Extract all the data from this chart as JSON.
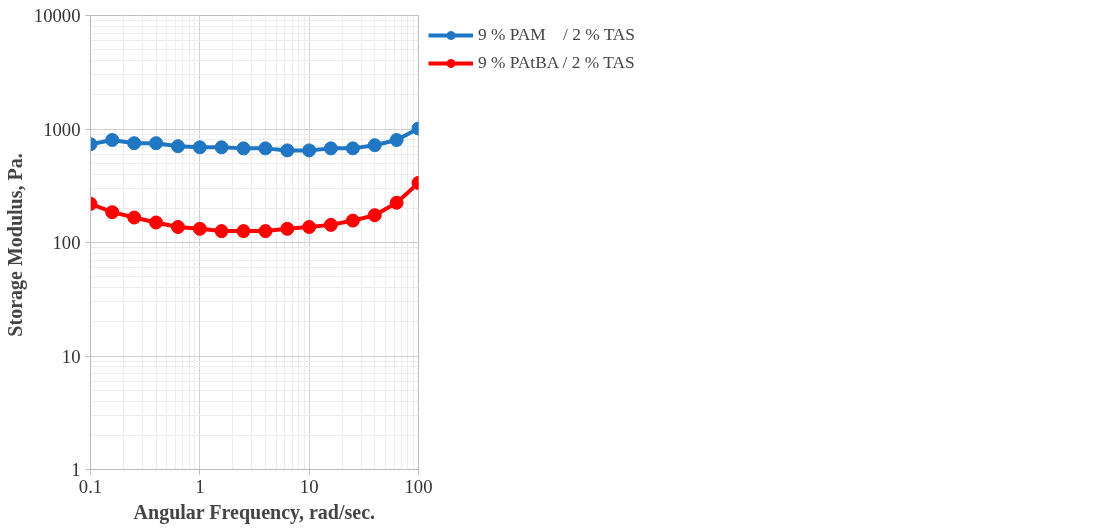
{
  "chart_data": {
    "type": "line",
    "xlabel": "Angular Frequency, rad/sec.",
    "ylabel": "Storage Modulus,  Pa.",
    "x": [
      0.1,
      0.158,
      0.251,
      0.398,
      0.631,
      1,
      1.58,
      2.51,
      3.98,
      6.31,
      10,
      15.8,
      25.1,
      39.8,
      63.1,
      100
    ],
    "series": [
      {
        "name": "9 % PAM    / 2 % TAS",
        "color": "#1f77c4",
        "values": [
          735,
          800,
          750,
          750,
          705,
          690,
          690,
          675,
          675,
          648,
          648,
          675,
          675,
          720,
          800,
          1010
        ]
      },
      {
        "name": "9 % PAtBA / 2 % TAS",
        "color": "#ff0000",
        "values": [
          219,
          185,
          166,
          150,
          137,
          132,
          126,
          126,
          126,
          132,
          137,
          143,
          156,
          174,
          224,
          335
        ]
      }
    ],
    "log": "xy",
    "xlim": [
      0.1,
      100
    ],
    "ylim": [
      1,
      10000
    ],
    "xticks": [
      0.1,
      1,
      10,
      100
    ],
    "yticks": [
      1,
      10,
      100,
      1000,
      10000
    ],
    "grid": true,
    "legend": "top right",
    "marker": "circle",
    "line_style": "solid"
  }
}
